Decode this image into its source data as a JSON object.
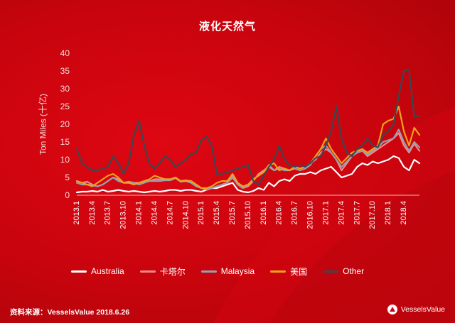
{
  "title": "液化天然气",
  "ylabel": "Ton Miles (十亿)",
  "source": "资料来源：VesselsValue 2018.6.26",
  "brand": "VesselsValue",
  "chart_data": {
    "type": "line",
    "ylim": [
      0,
      40
    ],
    "yticks": [
      0,
      5,
      10,
      15,
      20,
      25,
      30,
      35,
      40
    ],
    "x_tick_labels": [
      "2013.1",
      "2013.4",
      "2013.7",
      "2013.10",
      "2014.1",
      "2014.4",
      "2014.7",
      "2014.10",
      "2015.1",
      "2015.4",
      "2015.7",
      "2015.10",
      "2016.1",
      "2016.4",
      "2016.7",
      "2016.10",
      "2017.1",
      "2017.4",
      "2017.7",
      "2017.10",
      "2018.1",
      "2018.4"
    ],
    "n_points": 67,
    "legend_position": "bottom",
    "series": [
      {
        "name": "Australia",
        "color": "#ffffff",
        "values": [
          0.8,
          1.0,
          1.0,
          1.2,
          1.0,
          1.5,
          1.0,
          1.2,
          1.5,
          1.2,
          1.0,
          1.2,
          1.0,
          0.8,
          1.0,
          1.2,
          1.0,
          1.2,
          1.5,
          1.5,
          1.2,
          1.5,
          1.5,
          1.2,
          1.0,
          1.5,
          2.0,
          2.0,
          2.5,
          3.0,
          3.5,
          1.5,
          1.0,
          0.8,
          1.2,
          2.0,
          1.5,
          3.5,
          2.5,
          4.0,
          4.5,
          4.0,
          5.5,
          6.0,
          6.0,
          6.5,
          6.0,
          7.0,
          7.5,
          8.0,
          6.5,
          5.0,
          5.5,
          6.0,
          8.0,
          9.0,
          8.5,
          9.5,
          9.0,
          9.5,
          10.0,
          11.0,
          10.5,
          8.0,
          7.0,
          10.0,
          9.0
        ]
      },
      {
        "name": "卡塔尔",
        "color": "#f08a8a",
        "values": [
          4.0,
          3.5,
          3.8,
          3.0,
          2.5,
          3.0,
          4.0,
          5.0,
          4.5,
          3.5,
          3.8,
          3.5,
          3.5,
          3.8,
          4.0,
          4.5,
          4.5,
          4.5,
          4.5,
          5.0,
          4.0,
          4.2,
          4.0,
          3.0,
          2.0,
          1.5,
          2.0,
          2.5,
          3.0,
          3.5,
          5.0,
          3.0,
          2.0,
          2.5,
          4.0,
          6.0,
          7.0,
          8.0,
          7.0,
          8.0,
          7.5,
          7.0,
          8.0,
          7.5,
          8.0,
          9.0,
          10.0,
          12.0,
          13.0,
          12.0,
          10.0,
          7.0,
          9.0,
          11.0,
          12.0,
          12.5,
          11.0,
          12.0,
          13.0,
          14.0,
          15.0,
          16.0,
          17.5,
          14.0,
          12.0,
          14.5,
          12.5
        ]
      },
      {
        "name": "Malaysia",
        "color": "#8fa3b3",
        "values": [
          3.5,
          3.0,
          3.0,
          2.8,
          2.5,
          3.0,
          4.0,
          5.0,
          4.0,
          3.5,
          3.5,
          3.5,
          3.0,
          3.5,
          4.0,
          4.0,
          4.0,
          4.2,
          4.2,
          4.8,
          3.8,
          4.0,
          3.5,
          2.5,
          2.0,
          1.8,
          2.0,
          2.5,
          3.0,
          3.5,
          5.5,
          3.0,
          2.0,
          3.0,
          4.5,
          5.5,
          6.5,
          8.5,
          7.0,
          7.5,
          7.0,
          7.0,
          7.5,
          7.0,
          7.5,
          8.5,
          11.0,
          13.0,
          14.0,
          12.0,
          10.0,
          8.0,
          9.5,
          11.0,
          12.0,
          12.5,
          11.5,
          12.5,
          13.5,
          15.0,
          15.5,
          16.0,
          18.5,
          15.0,
          12.5,
          15.0,
          13.5
        ]
      },
      {
        "name": "美国",
        "color": "#f2a21a",
        "values": [
          4.0,
          3.5,
          3.0,
          2.5,
          3.5,
          4.5,
          5.5,
          6.0,
          5.0,
          3.5,
          3.5,
          3.0,
          3.5,
          4.0,
          4.5,
          5.5,
          5.0,
          4.5,
          4.5,
          5.0,
          4.0,
          4.0,
          4.0,
          3.0,
          2.0,
          2.0,
          2.5,
          3.5,
          4.0,
          4.0,
          6.0,
          3.5,
          2.5,
          3.0,
          4.5,
          5.5,
          6.5,
          8.5,
          9.0,
          7.0,
          7.5,
          7.0,
          8.0,
          7.5,
          8.0,
          9.0,
          11.0,
          13.0,
          16.0,
          13.0,
          11.0,
          9.0,
          10.5,
          12.0,
          12.5,
          13.0,
          12.0,
          13.0,
          14.0,
          20.0,
          21.0,
          21.5,
          25.0,
          18.0,
          14.0,
          19.0,
          17.0
        ]
      },
      {
        "name": "Other",
        "color": "#3a4750",
        "values": [
          13.0,
          9.0,
          8.0,
          7.0,
          7.0,
          7.5,
          8.0,
          11.0,
          9.0,
          6.0,
          9.0,
          17.0,
          21.0,
          14.0,
          9.0,
          7.5,
          9.0,
          11.0,
          10.0,
          8.0,
          9.0,
          10.0,
          11.5,
          12.0,
          15.5,
          16.5,
          14.0,
          6.0,
          6.0,
          6.5,
          7.0,
          7.5,
          8.0,
          8.5,
          4.0,
          3.0,
          5.5,
          8.0,
          10.0,
          14.0,
          10.0,
          8.5,
          8.0,
          8.5,
          8.0,
          9.0,
          10.5,
          11.0,
          14.0,
          18.0,
          25.0,
          16.0,
          12.0,
          11.0,
          13.0,
          14.0,
          16.0,
          14.0,
          13.5,
          17.0,
          18.0,
          20.0,
          28.0,
          35.0,
          35.5,
          22.0,
          22.5
        ]
      }
    ]
  }
}
